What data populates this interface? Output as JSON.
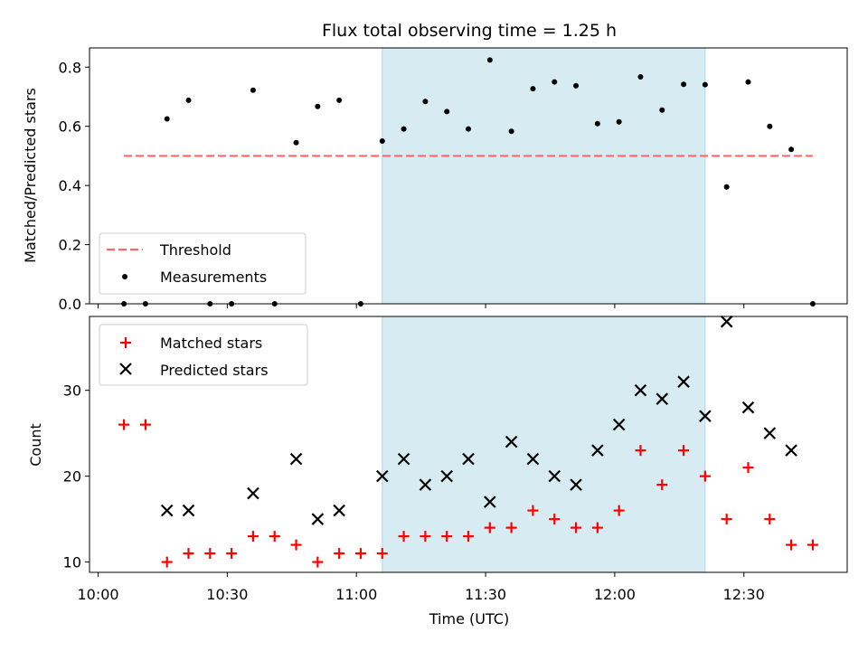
{
  "chart_data": {
    "title": "Flux total observing time = 1.25 h",
    "xlabel": "Time (UTC)",
    "x_ticks": [
      "10:00",
      "10:30",
      "11:00",
      "11:30",
      "12:00",
      "12:30"
    ],
    "x_range": [
      "09:58",
      "12:54"
    ],
    "highlight": {
      "start": "11:06",
      "end": "12:21",
      "color": "#add8e6"
    },
    "panels": [
      {
        "type": "scatter",
        "ylabel": "Matched/Predicted stars",
        "ylim": [
          0,
          0.865
        ],
        "y_ticks": [
          "0.0",
          "0.2",
          "0.4",
          "0.6",
          "0.8"
        ],
        "y_tick_values": [
          0.0,
          0.2,
          0.4,
          0.6,
          0.8
        ],
        "threshold": {
          "name": "Threshold",
          "y": 0.5,
          "x_start": "10:06",
          "x_end": "12:46",
          "color": "#ff6666"
        },
        "series": [
          {
            "name": "Measurements",
            "color": "#000000",
            "points": [
              [
                "10:06",
                0.0
              ],
              [
                "10:11",
                0.0
              ],
              [
                "10:16",
                0.625
              ],
              [
                "10:21",
                0.688
              ],
              [
                "10:26",
                0.0
              ],
              [
                "10:31",
                0.0
              ],
              [
                "10:36",
                0.722
              ],
              [
                "10:41",
                0.0
              ],
              [
                "10:46",
                0.545
              ],
              [
                "10:51",
                0.667
              ],
              [
                "10:56",
                0.688
              ],
              [
                "11:01",
                0.0
              ],
              [
                "11:06",
                0.55
              ],
              [
                "11:11",
                0.591
              ],
              [
                "11:16",
                0.684
              ],
              [
                "11:21",
                0.65
              ],
              [
                "11:26",
                0.591
              ],
              [
                "11:31",
                0.824
              ],
              [
                "11:36",
                0.583
              ],
              [
                "11:41",
                0.727
              ],
              [
                "11:46",
                0.75
              ],
              [
                "11:51",
                0.737
              ],
              [
                "11:56",
                0.609
              ],
              [
                "12:01",
                0.615
              ],
              [
                "12:06",
                0.767
              ],
              [
                "12:11",
                0.655
              ],
              [
                "12:16",
                0.742
              ],
              [
                "12:21",
                0.741
              ],
              [
                "12:26",
                0.395
              ],
              [
                "12:31",
                0.75
              ],
              [
                "12:36",
                0.6
              ],
              [
                "12:41",
                0.522
              ],
              [
                "12:46",
                0.0
              ]
            ]
          }
        ],
        "legend": {
          "location": "lower-left",
          "entries": [
            "Threshold",
            "Measurements"
          ]
        }
      },
      {
        "type": "scatter",
        "ylabel": "Count",
        "ylim": [
          8.8,
          38.6
        ],
        "y_ticks": [
          "10",
          "20",
          "30"
        ],
        "y_tick_values": [
          10,
          20,
          30
        ],
        "series": [
          {
            "name": "Matched stars",
            "marker": "plus",
            "color": "#ff0000",
            "points": [
              [
                "10:06",
                26
              ],
              [
                "10:11",
                26
              ],
              [
                "10:16",
                10
              ],
              [
                "10:21",
                11
              ],
              [
                "10:26",
                11
              ],
              [
                "10:31",
                11
              ],
              [
                "10:36",
                13
              ],
              [
                "10:41",
                13
              ],
              [
                "10:46",
                12
              ],
              [
                "10:51",
                10
              ],
              [
                "10:56",
                11
              ],
              [
                "11:01",
                11
              ],
              [
                "11:06",
                11
              ],
              [
                "11:11",
                13
              ],
              [
                "11:16",
                13
              ],
              [
                "11:21",
                13
              ],
              [
                "11:26",
                13
              ],
              [
                "11:31",
                14
              ],
              [
                "11:36",
                14
              ],
              [
                "11:41",
                16
              ],
              [
                "11:46",
                15
              ],
              [
                "11:51",
                14
              ],
              [
                "11:56",
                14
              ],
              [
                "12:01",
                16
              ],
              [
                "12:06",
                23
              ],
              [
                "12:11",
                19
              ],
              [
                "12:16",
                23
              ],
              [
                "12:21",
                20
              ],
              [
                "12:26",
                15
              ],
              [
                "12:31",
                21
              ],
              [
                "12:36",
                15
              ],
              [
                "12:41",
                12
              ],
              [
                "12:46",
                12
              ]
            ]
          },
          {
            "name": "Predicted stars",
            "marker": "x",
            "color": "#000000",
            "points": [
              [
                "10:16",
                16
              ],
              [
                "10:21",
                16
              ],
              [
                "10:36",
                18
              ],
              [
                "10:46",
                22
              ],
              [
                "10:51",
                15
              ],
              [
                "10:56",
                16
              ],
              [
                "11:06",
                20
              ],
              [
                "11:11",
                22
              ],
              [
                "11:16",
                19
              ],
              [
                "11:21",
                20
              ],
              [
                "11:26",
                22
              ],
              [
                "11:31",
                17
              ],
              [
                "11:36",
                24
              ],
              [
                "11:41",
                22
              ],
              [
                "11:46",
                20
              ],
              [
                "11:51",
                19
              ],
              [
                "11:56",
                23
              ],
              [
                "12:01",
                26
              ],
              [
                "12:06",
                30
              ],
              [
                "12:11",
                29
              ],
              [
                "12:16",
                31
              ],
              [
                "12:21",
                27
              ],
              [
                "12:26",
                38
              ],
              [
                "12:31",
                28
              ],
              [
                "12:36",
                25
              ],
              [
                "12:41",
                23
              ]
            ]
          }
        ],
        "legend": {
          "location": "upper-left",
          "entries": [
            "Matched stars",
            "Predicted stars"
          ]
        }
      }
    ]
  }
}
